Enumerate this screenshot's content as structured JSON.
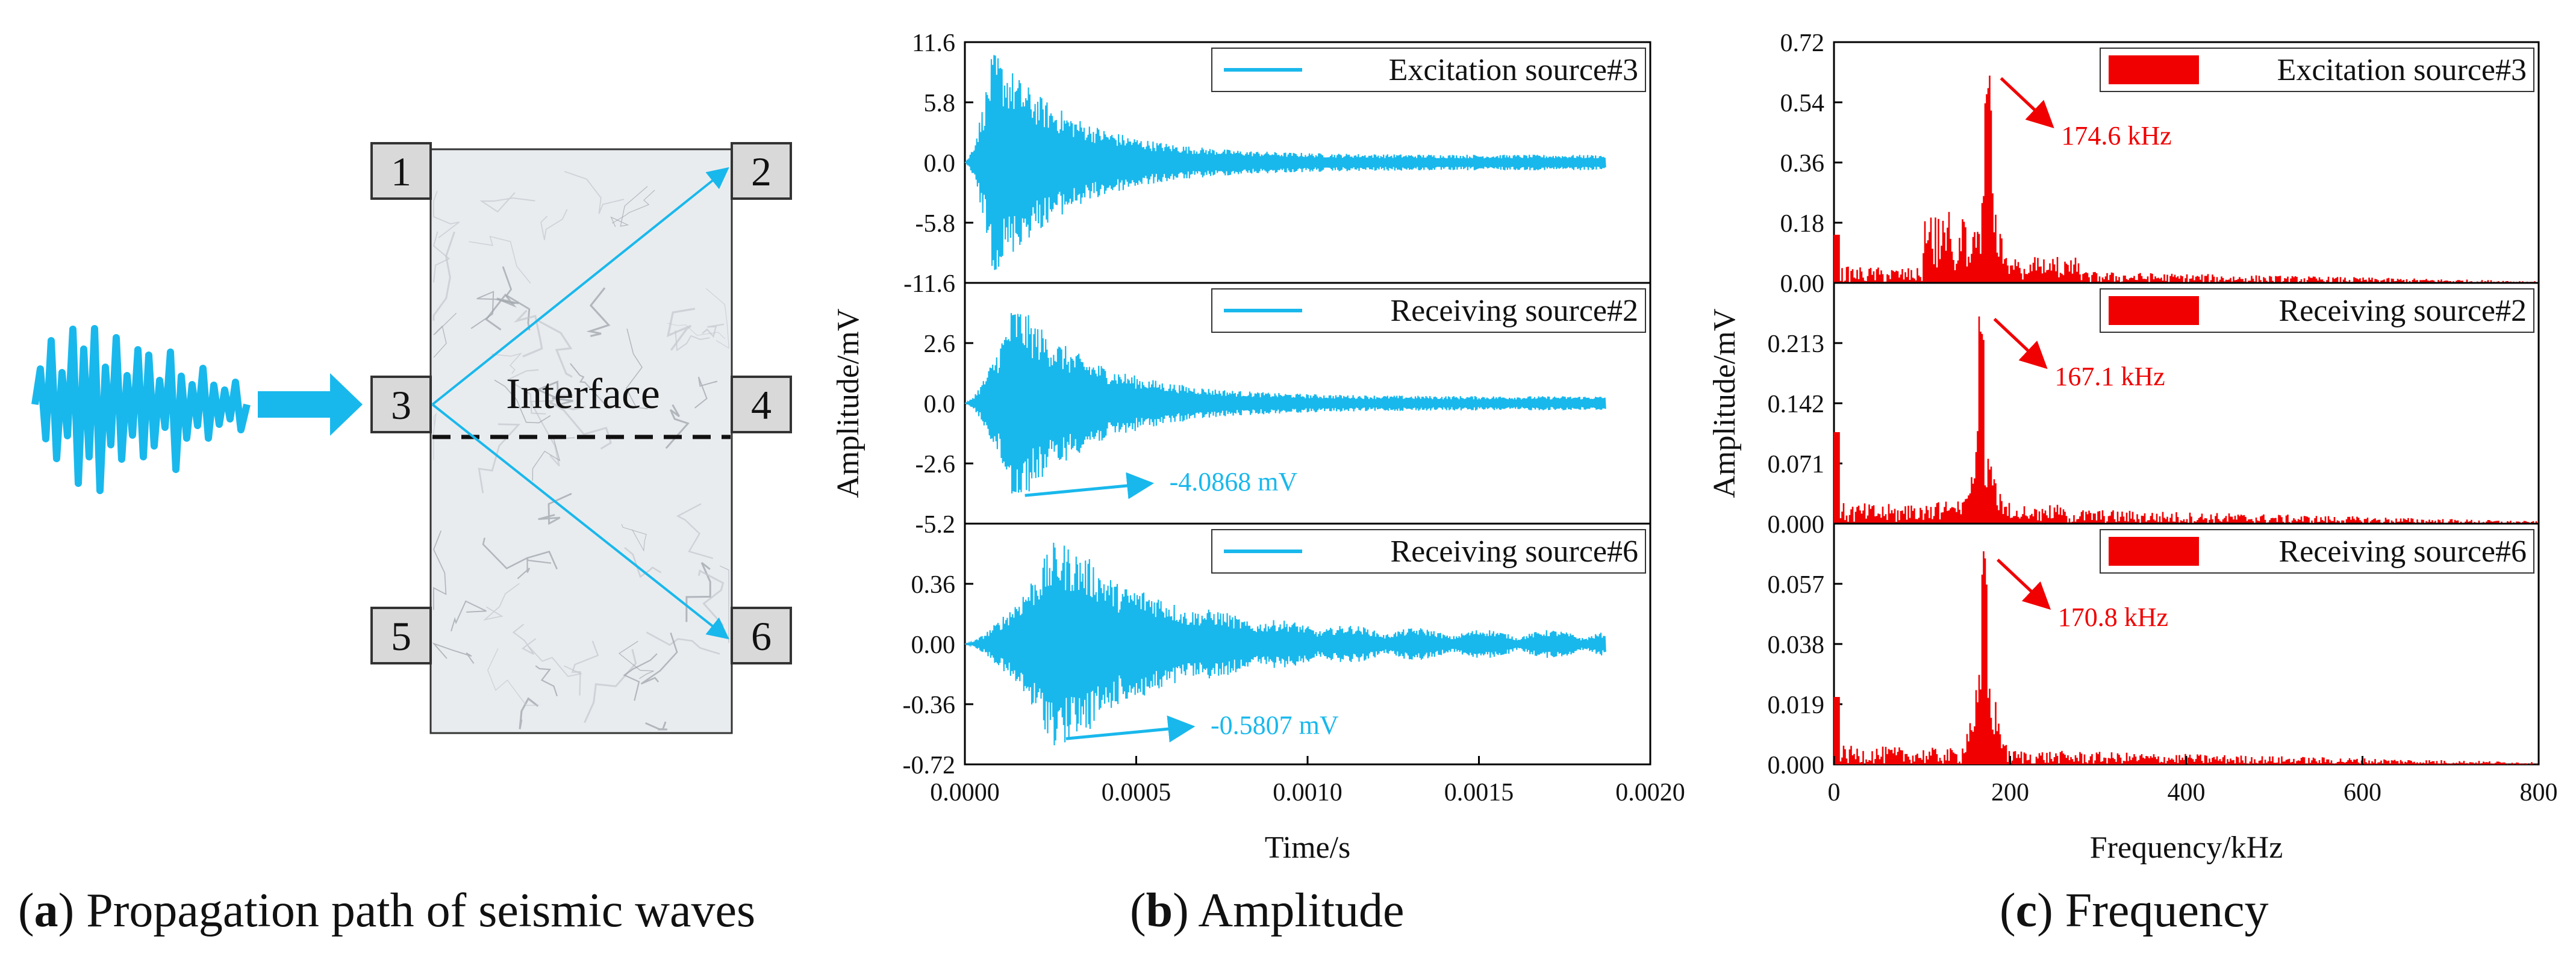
{
  "colors": {
    "cyan": "#19B8EC",
    "red": "#F00000",
    "box_fill": "#D9D9D9",
    "axis": "#000000",
    "marble": "#E9ECEF"
  },
  "panel_a": {
    "boxes": [
      "1",
      "2",
      "3",
      "4",
      "5",
      "6"
    ],
    "interface_label": "Interface",
    "caption_letter": "a",
    "caption_text": "Propagation path of seismic waves"
  },
  "panel_b": {
    "caption_letter": "b",
    "caption_text": "Amplitude"
  },
  "panel_c": {
    "caption_letter": "c",
    "caption_text": "Frequency"
  },
  "chart_data": [
    {
      "id": "b",
      "type": "line",
      "title": "Amplitude",
      "xlabel": "Time/s",
      "ylabel": "Amplitude/mV",
      "xlim": [
        0,
        0.002
      ],
      "xticks": [
        "0.0000",
        "0.0005",
        "0.0010",
        "0.0015",
        "0.0020"
      ],
      "signal_end_x": 0.00187,
      "series": [
        {
          "name": "Excitation source#3",
          "ylim": [
            -11.6,
            11.6
          ],
          "yticks": [
            "11.6",
            "5.8",
            "0.0",
            "-5.8",
            "-11.6"
          ],
          "peak_x": 8e-05,
          "peak_y": 10.0,
          "annotation": null
        },
        {
          "name": "Receiving source#2",
          "ylim": [
            -5.2,
            5.2
          ],
          "yticks": [
            "2.6",
            "0.0",
            "-2.6",
            "-5.2"
          ],
          "peak_x": 0.00014,
          "peak_y": -4.0868,
          "annotation": "-4.0868 mV"
        },
        {
          "name": "Receiving source#6",
          "ylim": [
            -0.72,
            0.72
          ],
          "yticks": [
            "0.36",
            "0.00",
            "-0.36",
            "-0.72"
          ],
          "peak_x": 0.00026,
          "peak_y": -0.5807,
          "annotation": "-0.5807 mV"
        }
      ]
    },
    {
      "id": "c",
      "type": "bar",
      "title": "Frequency",
      "xlabel": "Frequency/kHz",
      "ylabel": "Amplitude/mV",
      "xlim": [
        0,
        800
      ],
      "xticks": [
        "0",
        "200",
        "400",
        "600",
        "800"
      ],
      "series": [
        {
          "name": "Excitation source#3",
          "ylim": [
            0,
            0.72
          ],
          "yticks": [
            "0.72",
            "0.54",
            "0.36",
            "0.18",
            "0.00"
          ],
          "peak_x": 174.6,
          "peak_y": 0.63,
          "annotation": "174.6 kHz"
        },
        {
          "name": "Receiving source#2",
          "ylim": [
            0,
            0.284
          ],
          "yticks": [
            "0.213",
            "0.142",
            "0.071",
            "0.000"
          ],
          "peak_x": 167.1,
          "peak_y": 0.25,
          "annotation": "167.1 kHz"
        },
        {
          "name": "Receiving source#6",
          "ylim": [
            0,
            0.076
          ],
          "yticks": [
            "0.057",
            "0.038",
            "0.019",
            "0.000"
          ],
          "peak_x": 170.8,
          "peak_y": 0.068,
          "annotation": "170.8 kHz"
        }
      ]
    }
  ]
}
